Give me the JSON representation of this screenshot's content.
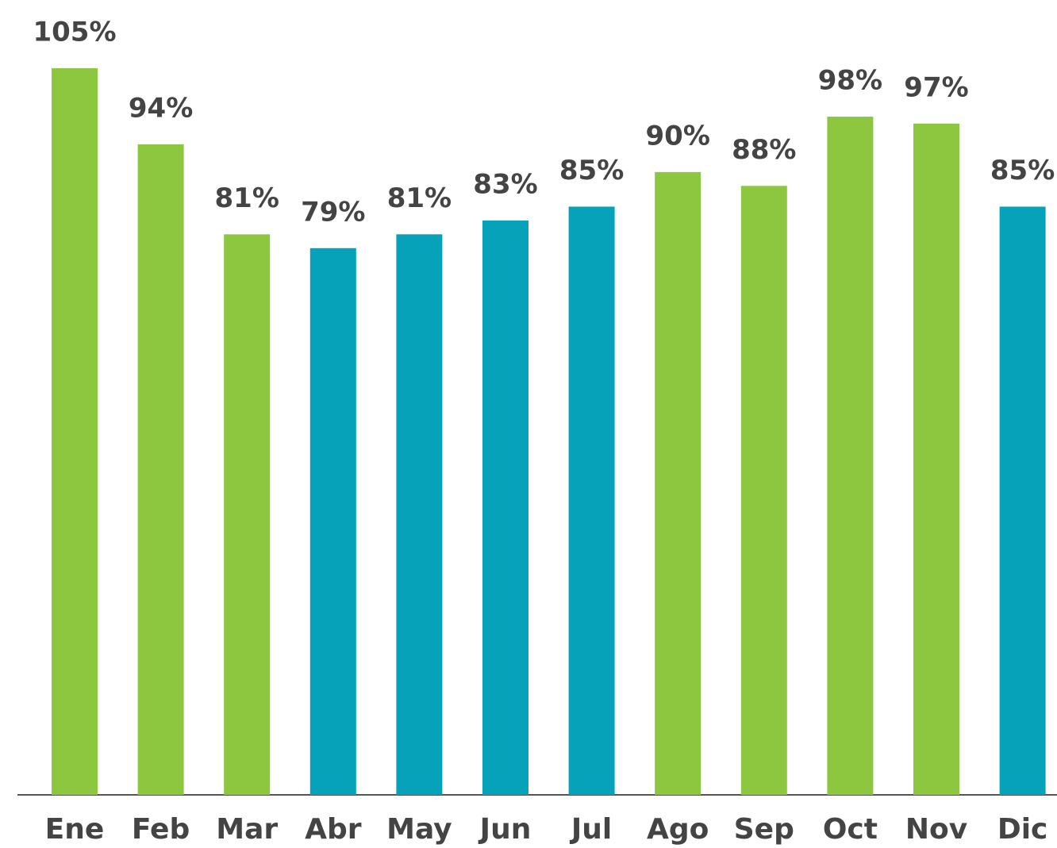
{
  "chart_data": {
    "type": "bar",
    "categories": [
      "Ene",
      "Feb",
      "Mar",
      "Abr",
      "May",
      "Jun",
      "Jul",
      "Ago",
      "Sep",
      "Oct",
      "Nov",
      "Dic"
    ],
    "values": [
      105,
      94,
      81,
      79,
      81,
      83,
      85,
      90,
      88,
      98,
      97,
      85
    ],
    "value_labels": [
      "105%",
      "94%",
      "81%",
      "79%",
      "81%",
      "83%",
      "85%",
      "90%",
      "88%",
      "98%",
      "97%",
      "85%"
    ],
    "colors": [
      "#8dc63f",
      "#8dc63f",
      "#8dc63f",
      "#06a2b9",
      "#06a2b9",
      "#06a2b9",
      "#06a2b9",
      "#8dc63f",
      "#8dc63f",
      "#8dc63f",
      "#8dc63f",
      "#06a2b9"
    ]
  }
}
